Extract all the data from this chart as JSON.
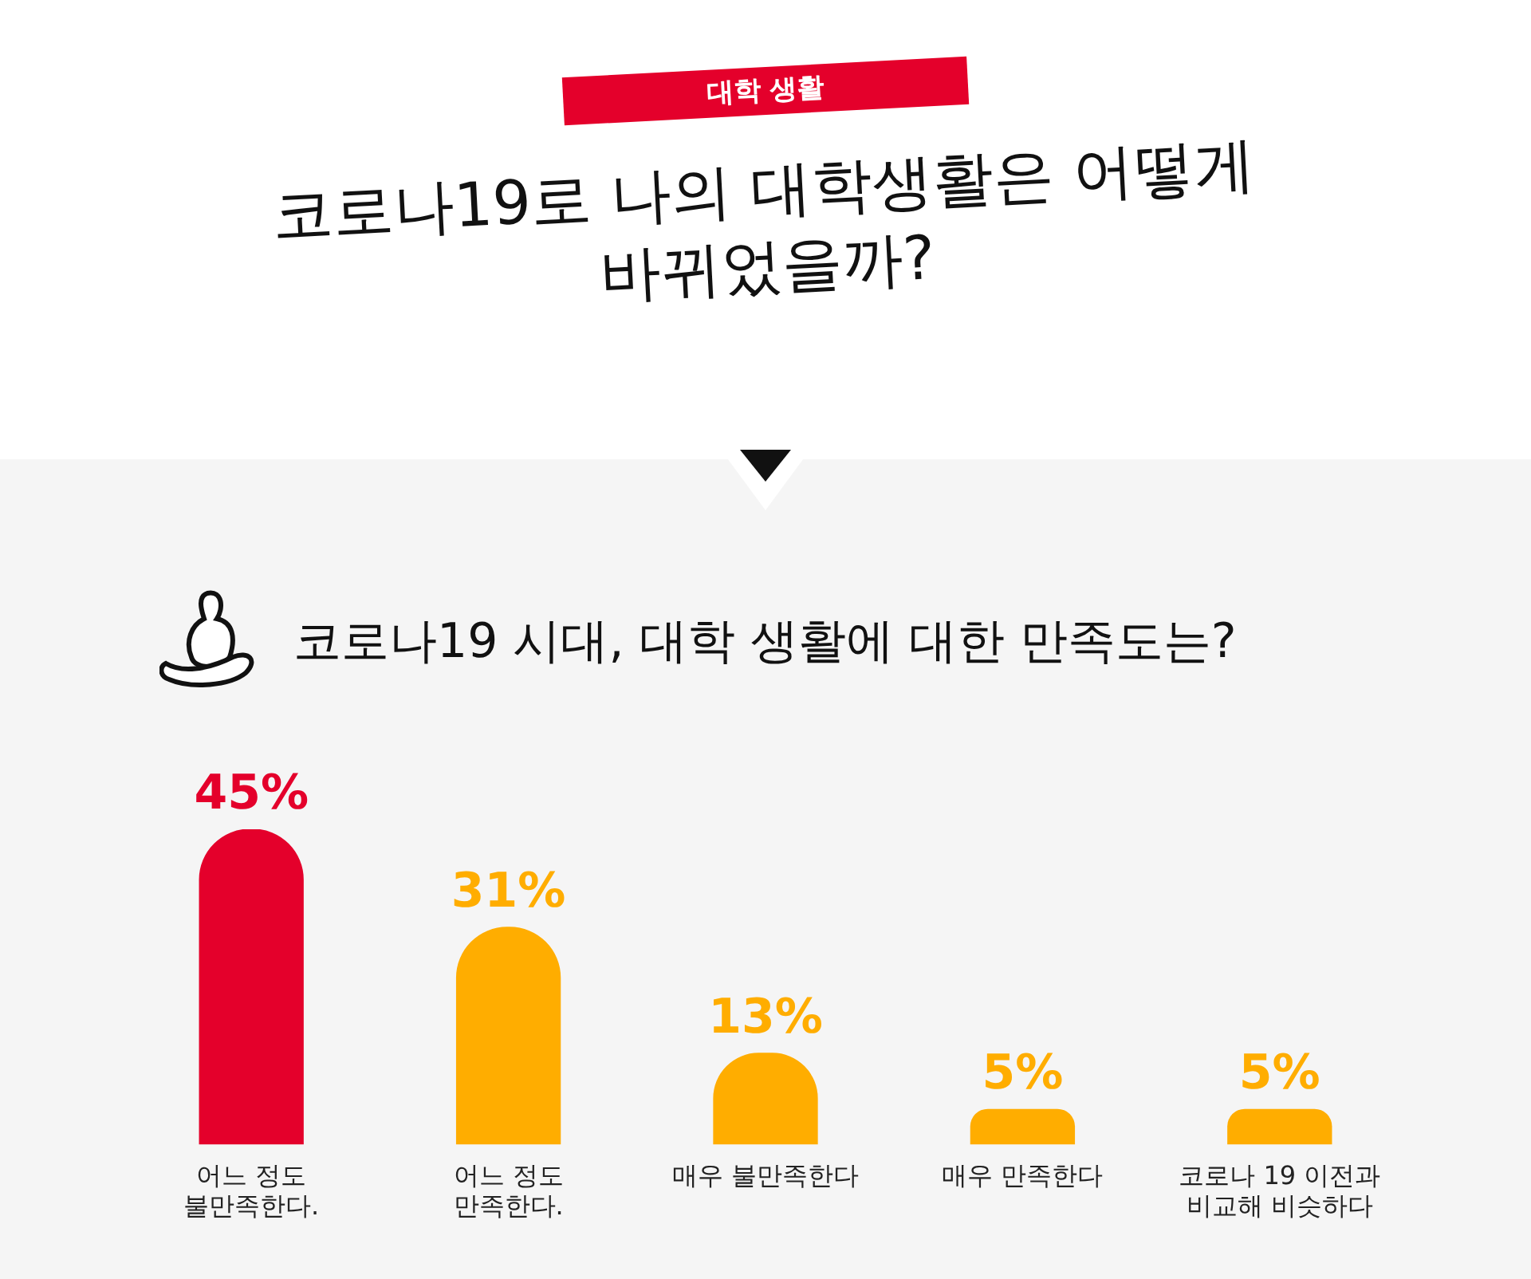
{
  "chart_data": {
    "type": "bar",
    "title": "코로나19로 나의 대학생활은 어떻게 바뀌었을까?",
    "subtitle": "코로나19 시대, 대학 생활에 대한 만족도는?",
    "annotations": [
      "대학 생활"
    ],
    "categories": [
      "어느 정도\n불만족한다.",
      "어느 정도\n만족한다.",
      "매우 불만족한다",
      "매우 만족한다",
      "코로나 19 이전과\n비교해 비슷하다"
    ],
    "values": [
      45,
      31,
      13,
      5,
      5
    ],
    "colors": [
      "#e4002b",
      "#ffad00",
      "#ffad00",
      "#ffad00",
      "#ffad00"
    ],
    "value_labels": [
      "45%",
      "31%",
      "13%",
      "5%",
      "5%"
    ],
    "tick_labels": "x",
    "grid": false,
    "legend": false
  }
}
